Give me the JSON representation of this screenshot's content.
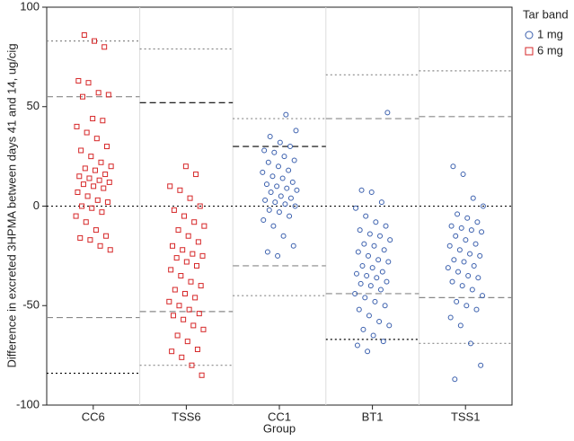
{
  "chart_data": {
    "type": "strip",
    "y_label": "Difference in excreted 3HPMA between days 41 and 14, ug/cig",
    "x_label": "Group",
    "legend_title": "Tar band",
    "categories": [
      "CC6",
      "TSS6",
      "CC1",
      "BT1",
      "TSS1"
    ],
    "ylim": [
      -100,
      100
    ],
    "yticks": [
      -100,
      -50,
      0,
      50,
      100
    ],
    "zero_line": 0,
    "reference_lines": [
      {
        "values": [
          83,
          55,
          -56,
          -84
        ],
        "colors": [
          "#888888",
          "#888888",
          "#888888",
          "#000000"
        ],
        "dash": [
          "2,3",
          "7,4",
          "7,4",
          "2,3"
        ]
      },
      {
        "values": [
          79,
          52,
          -53,
          -80
        ],
        "colors": [
          "#888888",
          "#000000",
          "#888888",
          "#888888"
        ],
        "dash": [
          "2,3",
          "7,4",
          "7,4",
          "2,3"
        ]
      },
      {
        "values": [
          44,
          30,
          -30,
          -45
        ],
        "colors": [
          "#888888",
          "#000000",
          "#888888",
          "#888888"
        ],
        "dash": [
          "2,3",
          "7,4",
          "7,4",
          "2,3"
        ]
      },
      {
        "values": [
          66,
          44,
          -44,
          -67
        ],
        "colors": [
          "#888888",
          "#888888",
          "#888888",
          "#000000"
        ],
        "dash": [
          "2,3",
          "7,4",
          "7,4",
          "2,3"
        ]
      },
      {
        "values": [
          68,
          45,
          -46,
          -69
        ],
        "colors": [
          "#888888",
          "#888888",
          "#888888",
          "#888888"
        ],
        "dash": [
          "2,3",
          "7,4",
          "7,4",
          "2,3"
        ]
      }
    ],
    "series": [
      {
        "name": "1 mg",
        "color": "#3a5fad",
        "marker": "circle",
        "values": [
          [],
          [],
          [
            46,
            38,
            35,
            32,
            30,
            28,
            27,
            25,
            23,
            22,
            20,
            18,
            17,
            15,
            14,
            12,
            11,
            10,
            9,
            8,
            7,
            5,
            4,
            3,
            2,
            1,
            0,
            -2,
            -3,
            -5,
            -7,
            -10,
            -15,
            -20,
            -23,
            -25
          ],
          [
            47,
            8,
            7,
            2,
            -1,
            -5,
            -8,
            -10,
            -12,
            -14,
            -15,
            -17,
            -19,
            -20,
            -22,
            -23,
            -25,
            -27,
            -28,
            -30,
            -31,
            -33,
            -34,
            -35,
            -36,
            -38,
            -39,
            -40,
            -42,
            -44,
            -46,
            -48,
            -50,
            -52,
            -55,
            -58,
            -60,
            -62,
            -65,
            -68,
            -70,
            -73
          ],
          [
            20,
            16,
            4,
            0,
            -4,
            -6,
            -8,
            -10,
            -11,
            -12,
            -13,
            -15,
            -17,
            -19,
            -20,
            -22,
            -24,
            -25,
            -27,
            -28,
            -30,
            -31,
            -33,
            -35,
            -36,
            -38,
            -40,
            -42,
            -45,
            -48,
            -50,
            -52,
            -56,
            -60,
            -69,
            -80,
            -87
          ]
        ]
      },
      {
        "name": "6 mg",
        "color": "#d62728",
        "marker": "square",
        "values": [
          [
            86,
            83,
            80,
            63,
            62,
            57,
            56,
            55,
            44,
            43,
            40,
            37,
            34,
            30,
            28,
            25,
            22,
            20,
            19,
            18,
            16,
            15,
            14,
            13,
            12,
            11,
            10,
            9,
            7,
            5,
            3,
            2,
            0,
            -1,
            -3,
            -5,
            -8,
            -12,
            -15,
            -16,
            -17,
            -20,
            -22
          ],
          [
            20,
            16,
            10,
            8,
            4,
            0,
            -2,
            -5,
            -8,
            -10,
            -12,
            -15,
            -18,
            -20,
            -22,
            -24,
            -25,
            -26,
            -28,
            -30,
            -32,
            -35,
            -38,
            -40,
            -42,
            -44,
            -46,
            -48,
            -50,
            -52,
            -54,
            -55,
            -57,
            -60,
            -62,
            -65,
            -68,
            -72,
            -73,
            -76,
            -80,
            -85
          ],
          [],
          [],
          []
        ]
      }
    ]
  }
}
